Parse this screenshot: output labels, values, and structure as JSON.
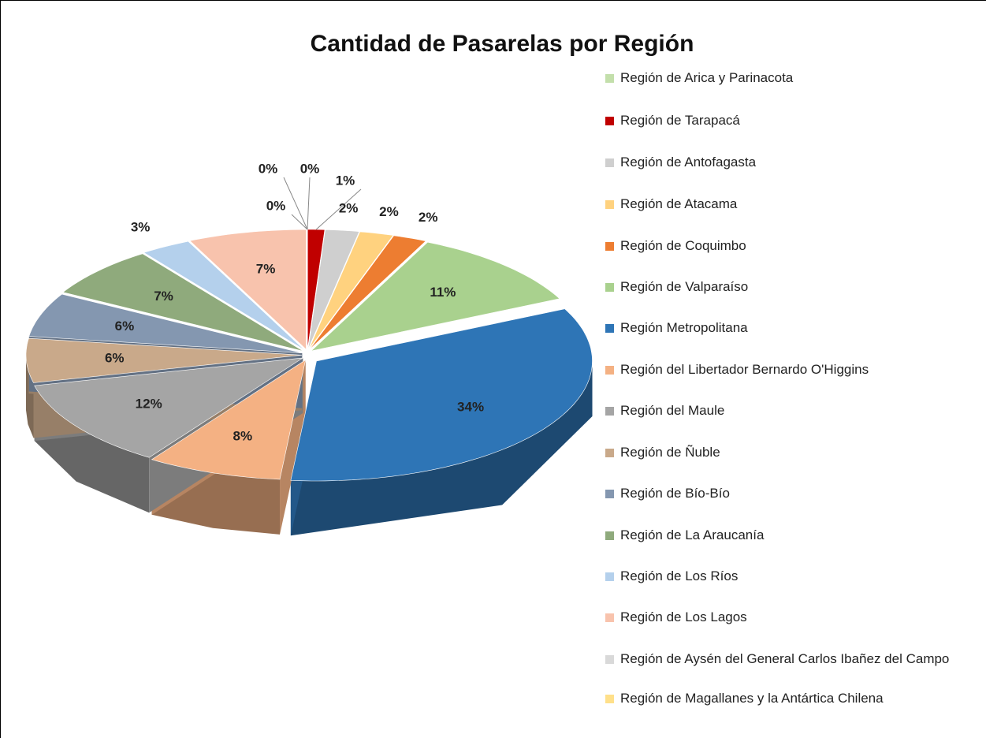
{
  "chart_data": {
    "type": "pie3d",
    "title": "Cantidad de Pasarelas por Región",
    "categories": [
      "Región de Arica y Parinacota",
      "Región de Tarapacá",
      "Región de Antofagasta",
      "Región de Atacama",
      "Región de Coquimbo",
      "Región de Valparaíso",
      "Región Metropolitana",
      "Región del Libertador Bernardo O'Higgins",
      "Región del Maule",
      "Región de Ñuble",
      "Región de Bío-Bío",
      "Región de La Araucanía",
      "Región de Los Ríos",
      "Región de Los Lagos",
      "Región de Aysén del General Carlos Ibañez del Campo",
      "Región de Magallanes y la Antártica Chilena"
    ],
    "values": [
      0,
      1,
      2,
      2,
      2,
      11,
      34,
      8,
      12,
      6,
      6,
      7,
      3,
      7,
      0,
      0
    ],
    "value_labels": [
      "0%",
      "1%",
      "2%",
      "2%",
      "2%",
      "11%",
      "34%",
      "8%",
      "12%",
      "6%",
      "6%",
      "7%",
      "3%",
      "7%",
      "0%",
      "0%"
    ],
    "colors": [
      "#c3dfab",
      "#c00000",
      "#cfcfcf",
      "#ffd27f",
      "#ed7d31",
      "#a9d18e",
      "#2e75b6",
      "#f4b183",
      "#a5a5a5",
      "#c9a98a",
      "#8497b0",
      "#8faa7c",
      "#b4d0ec",
      "#f8c3ad",
      "#d9d9d9",
      "#ffe08a"
    ],
    "legend": "right"
  }
}
